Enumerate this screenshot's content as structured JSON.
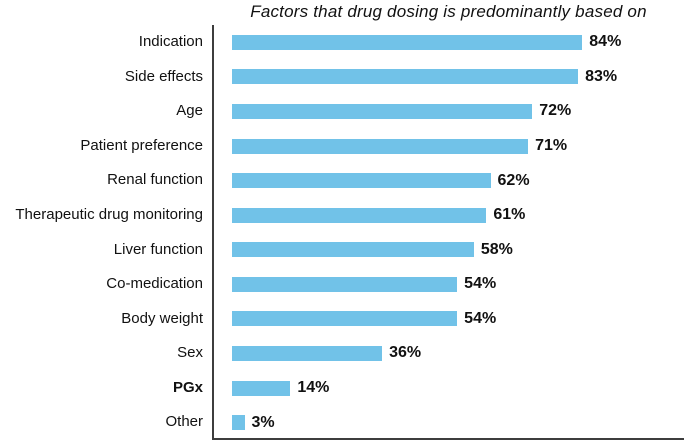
{
  "chart_data": {
    "type": "bar",
    "orientation": "horizontal",
    "title": "Factors that drug dosing is predominantly based on",
    "unit": "%",
    "xlim": [
      0,
      100
    ],
    "grid": false,
    "legend": "none",
    "bar_color": "#71C2E8",
    "axis_color": "#3d3d3d",
    "categories": [
      "Indication",
      "Side effects",
      "Age",
      "Patient preference",
      "Renal function",
      "Therapeutic drug monitoring",
      "Liver function",
      "Co-medication",
      "Body weight",
      "Sex",
      "PGx",
      "Other"
    ],
    "values": [
      84,
      83,
      72,
      71,
      62,
      61,
      58,
      54,
      54,
      36,
      14,
      3
    ],
    "items": [
      {
        "label": "Indication",
        "value": 84,
        "value_label": "84%",
        "bold_label": false
      },
      {
        "label": "Side effects",
        "value": 83,
        "value_label": "83%",
        "bold_label": false
      },
      {
        "label": "Age",
        "value": 72,
        "value_label": "72%",
        "bold_label": false
      },
      {
        "label": "Patient preference",
        "value": 71,
        "value_label": "71%",
        "bold_label": false
      },
      {
        "label": "Renal function",
        "value": 62,
        "value_label": "62%",
        "bold_label": false
      },
      {
        "label": "Therapeutic drug monitoring",
        "value": 61,
        "value_label": "61%",
        "bold_label": false
      },
      {
        "label": "Liver function",
        "value": 58,
        "value_label": "58%",
        "bold_label": false
      },
      {
        "label": "Co-medication",
        "value": 54,
        "value_label": "54%",
        "bold_label": false
      },
      {
        "label": "Body weight",
        "value": 54,
        "value_label": "54%",
        "bold_label": false
      },
      {
        "label": "Sex",
        "value": 36,
        "value_label": "36%",
        "bold_label": false
      },
      {
        "label": "PGx",
        "value": 14,
        "value_label": "14%",
        "bold_label": true
      },
      {
        "label": "Other",
        "value": 3,
        "value_label": "3%",
        "bold_label": false
      }
    ]
  }
}
